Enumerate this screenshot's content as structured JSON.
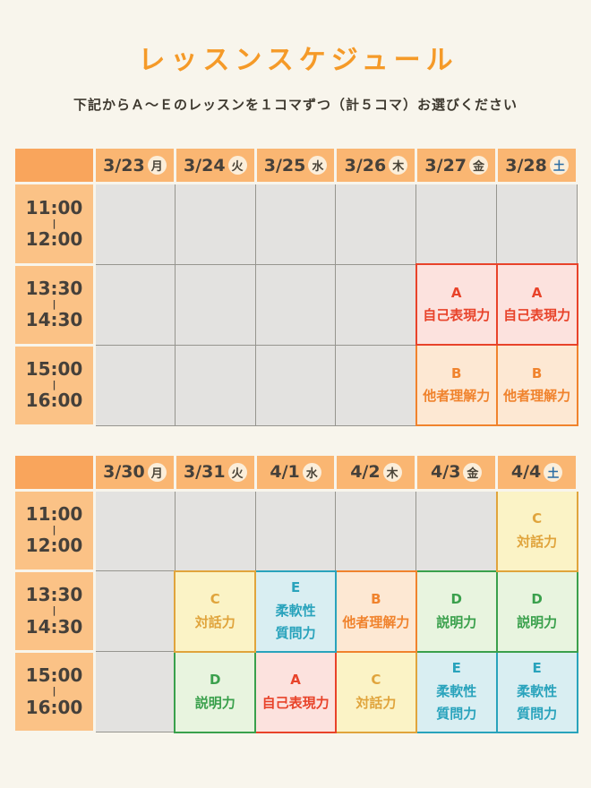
{
  "page": {
    "title": "レッスンスケジュール",
    "subtitle": "下記からＡ～Ｅのレッスンを１コマずつ（計５コマ）お選びください"
  },
  "colors": {
    "page_bg": "#F8F5EC",
    "title_orange": "#F59A28",
    "header_corner_bg": "#F9A55C",
    "header_day_bg": "#FAB672",
    "time_cell_bg": "#FBC286",
    "badge_bg": "#FBEEDA",
    "badge_text": "#4A4438",
    "badge_saturday_text": "#2C6EA5",
    "empty_cell_bg": "#E3E2E0",
    "empty_cell_border": "#96958F",
    "dark_text": "#45403A"
  },
  "time_separator": "|",
  "time_slots": [
    {
      "start": "11:00",
      "end": "12:00"
    },
    {
      "start": "13:30",
      "end": "14:30"
    },
    {
      "start": "15:00",
      "end": "16:00"
    }
  ],
  "lessons": {
    "A": {
      "lines": [
        "A",
        "自己表現力"
      ],
      "color": "#E8432A",
      "bg": "#FCE2DE"
    },
    "B": {
      "lines": [
        "B",
        "他者理解力"
      ],
      "color": "#F0832D",
      "bg": "#FDE8D3"
    },
    "C": {
      "lines": [
        "C",
        "対話力"
      ],
      "color": "#E0A43C",
      "bg": "#FBF3C6"
    },
    "D": {
      "lines": [
        "D",
        "説明力"
      ],
      "color": "#3AA04C",
      "bg": "#E8F4DF"
    },
    "E": {
      "lines": [
        "E",
        "柔軟性",
        "質問力"
      ],
      "color": "#29A3BC",
      "bg": "#D9EEF2"
    }
  },
  "weeks": [
    {
      "days": [
        {
          "date": "3/23",
          "dow": "月"
        },
        {
          "date": "3/24",
          "dow": "火"
        },
        {
          "date": "3/25",
          "dow": "水"
        },
        {
          "date": "3/26",
          "dow": "木"
        },
        {
          "date": "3/27",
          "dow": "金"
        },
        {
          "date": "3/28",
          "dow": "土"
        }
      ],
      "grid": [
        [
          null,
          null,
          null,
          null,
          null,
          null
        ],
        [
          null,
          null,
          null,
          null,
          "A",
          "A"
        ],
        [
          null,
          null,
          null,
          null,
          "B",
          "B"
        ]
      ]
    },
    {
      "days": [
        {
          "date": "3/30",
          "dow": "月"
        },
        {
          "date": "3/31",
          "dow": "火"
        },
        {
          "date": "4/1",
          "dow": "水"
        },
        {
          "date": "4/2",
          "dow": "木"
        },
        {
          "date": "4/3",
          "dow": "金"
        },
        {
          "date": "4/4",
          "dow": "土"
        }
      ],
      "grid": [
        [
          null,
          null,
          null,
          null,
          null,
          "C"
        ],
        [
          null,
          "C",
          "E",
          "B",
          "D",
          "D"
        ],
        [
          null,
          "D",
          "A",
          "C",
          "E",
          "E"
        ]
      ]
    }
  ]
}
